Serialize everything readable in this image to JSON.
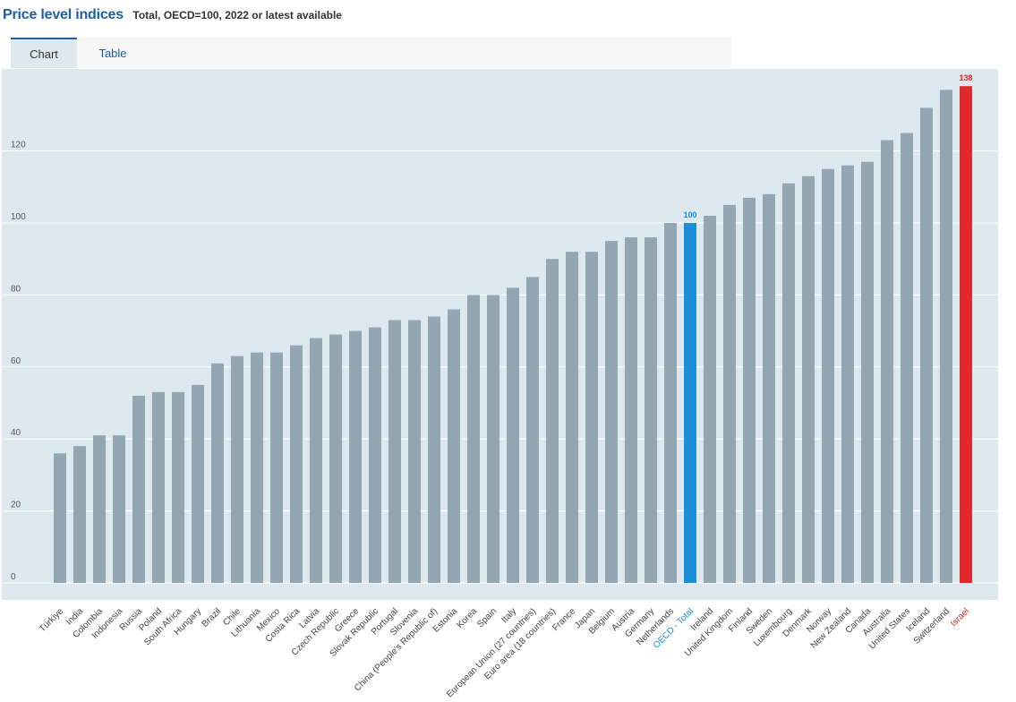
{
  "header": {
    "title": "Price level indices",
    "subtitle": "Total, OECD=100, 2022 or latest available"
  },
  "tabs": [
    {
      "label": "Chart",
      "active": true
    },
    {
      "label": "Table",
      "active": false
    }
  ],
  "colors": {
    "bar": "#93a7b3",
    "highlight_oecd": "#1a8fd8",
    "highlight_israel": "#e02a2a",
    "plot_background": "#dde8ef"
  },
  "chart_data": {
    "type": "bar",
    "title": "",
    "xlabel": "",
    "ylabel": "",
    "ylim": [
      0,
      140
    ],
    "yticks": [
      0,
      20,
      40,
      60,
      80,
      100,
      120
    ],
    "grid": true,
    "categories": [
      "Türkiye",
      "India",
      "Colombia",
      "Indonesia",
      "Russia",
      "Poland",
      "South Africa",
      "Hungary",
      "Brazil",
      "Chile",
      "Lithuania",
      "Mexico",
      "Costa Rica",
      "Latvia",
      "Czech Republic",
      "Greece",
      "Slovak Republic",
      "Portugal",
      "Slovenia",
      "China (People's Republic of)",
      "Estonia",
      "Korea",
      "Spain",
      "Italy",
      "European Union (27 countries)",
      "Euro area (18 countries)",
      "France",
      "Japan",
      "Belgium",
      "Austria",
      "Germany",
      "Netherlands",
      "OECD - Total",
      "Ireland",
      "United Kingdom",
      "Finland",
      "Sweden",
      "Luxembourg",
      "Denmark",
      "Norway",
      "New Zealand",
      "Canada",
      "Australia",
      "United States",
      "Iceland",
      "Switzerland",
      "Israel"
    ],
    "values": [
      36,
      38,
      41,
      41,
      52,
      53,
      53,
      55,
      61,
      63,
      64,
      64,
      66,
      68,
      69,
      70,
      71,
      73,
      73,
      74,
      76,
      80,
      80,
      82,
      85,
      90,
      92,
      92,
      95,
      96,
      96,
      100,
      100,
      102,
      105,
      107,
      108,
      111,
      113,
      115,
      116,
      117,
      123,
      125,
      132,
      137,
      138
    ],
    "highlights": [
      {
        "category": "OECD - Total",
        "label": "100",
        "color": "#1a8fd8"
      },
      {
        "category": "Israel",
        "label": "138",
        "color": "#e02a2a"
      }
    ]
  }
}
